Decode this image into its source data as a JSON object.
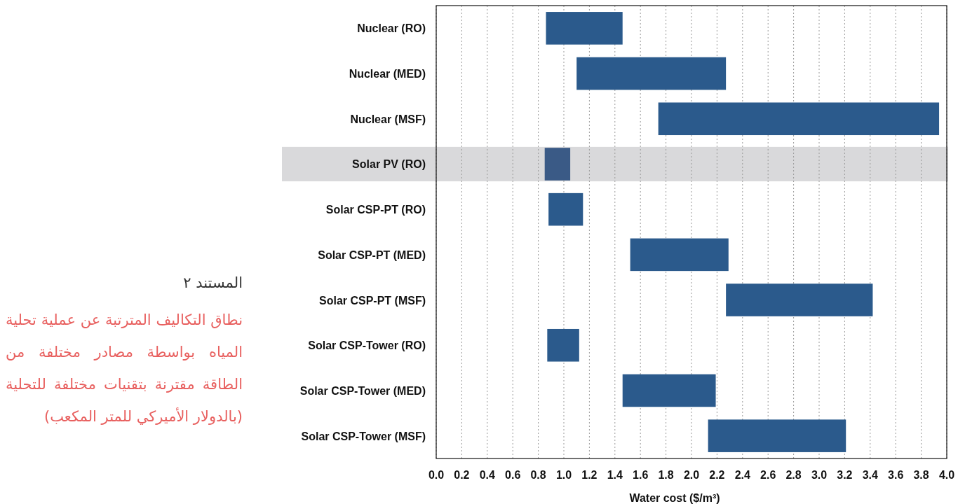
{
  "chart_data": {
    "type": "bar",
    "orientation": "horizontal",
    "title": "المستند ٢",
    "subtitle": "نطاق التكاليف المترتبة عن عملية تحلية المياه بواسطة مصادر مختلفة من الطاقة مقترنة بتقنيات مختلفة للتحلية (بالدولار الأميركي للمتر المكعب)",
    "xlabel": "Water cost ($/m³)",
    "categories": [
      "Nuclear (RO)",
      "Nuclear (MED)",
      "Nuclear (MSF)",
      "Solar PV (RO)",
      "Solar CSP-PT (RO)",
      "Solar CSP-PT (MED)",
      "Solar CSP-PT (MSF)",
      "Solar CSP-Tower (RO)",
      "Solar CSP-Tower (MED)",
      "Solar CSP-Tower (MSF)"
    ],
    "base": [
      0.86,
      1.1,
      1.74,
      0.85,
      0.88,
      1.52,
      2.27,
      0.87,
      1.46,
      2.13
    ],
    "values": [
      0.6,
      1.17,
      2.2,
      0.2,
      0.27,
      0.77,
      1.15,
      0.25,
      0.73,
      1.08
    ],
    "colors": [
      "#2b5a8c",
      "#2b5a8c",
      "#2b5a8c",
      "#3a5a86",
      "#2b5a8c",
      "#2b5a8c",
      "#2b5a8c",
      "#2b5a8c",
      "#2b5a8c",
      "#2b5a8c"
    ],
    "xlim": [
      0,
      4
    ],
    "xticks": [
      {
        "value": 0,
        "label": "0.0"
      },
      0.2,
      0.4,
      0.6,
      0.8,
      {
        "value": 1,
        "label": "1.0"
      },
      1.2,
      1.4,
      1.6,
      1.8,
      {
        "value": 2,
        "label": "2.0"
      },
      2.2,
      2.4,
      2.6,
      2.8,
      {
        "value": 3,
        "label": "3.0"
      },
      3.2,
      3.4,
      3.6,
      3.8,
      {
        "value": 4,
        "label": "4.0"
      }
    ],
    "grid": "x",
    "bands": [
      {
        "axis": "y",
        "from": "Solar PV (RO)",
        "to": "Solar PV (RO)",
        "color": "#d9d9db"
      }
    ]
  }
}
